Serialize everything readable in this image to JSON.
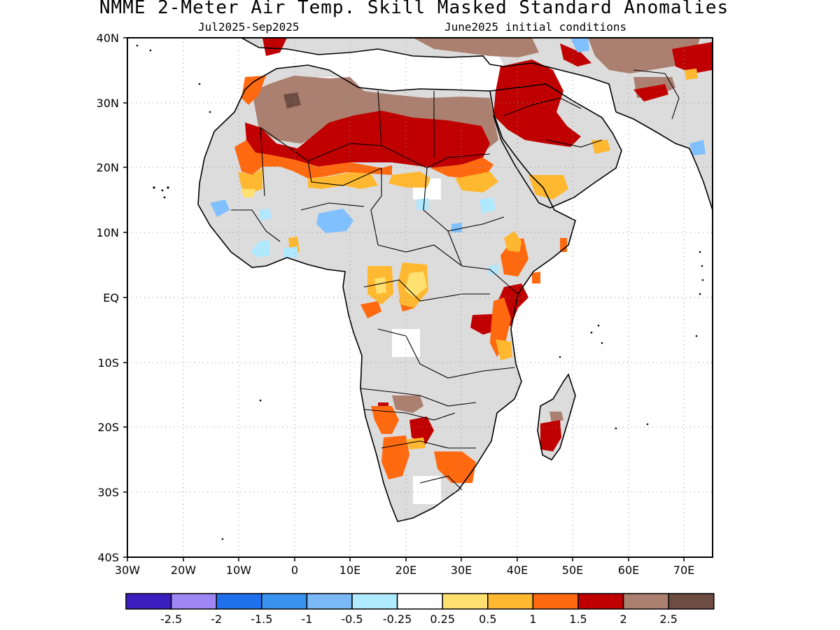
{
  "title": "NMME 2-Meter Air Temp. Skill Masked Standard Anomalies",
  "subtitle_left": "Jul2025-Sep2025",
  "subtitle_right": "June2025 initial conditions",
  "map": {
    "lon_range": [
      -30,
      75
    ],
    "lat_range": [
      -40,
      40
    ],
    "lon_ticks": [
      "30W",
      "20W",
      "10W",
      "0",
      "10E",
      "20E",
      "30E",
      "40E",
      "50E",
      "60E",
      "70E"
    ],
    "lat_ticks": [
      "40N",
      "30N",
      "20N",
      "10N",
      "EQ",
      "10S",
      "20S",
      "30S",
      "40S"
    ],
    "grid": "dotted"
  },
  "colors": {
    "land_gray": "#dcdcdc",
    "brown": "#ab8070",
    "dark_red": "#c00000",
    "orange": "#ff6a10",
    "light_orange": "#ffb830",
    "yellow": "#ffe070",
    "light_blue": "#80c0ff",
    "blue": "#4a9cf0",
    "pale_cyan": "#b0e8ff"
  },
  "colorbar": {
    "colors": [
      "#3b1ec0",
      "#9e86f5",
      "#2070ee",
      "#3a92f0",
      "#7ab8f8",
      "#b0eaff",
      "#ffffff",
      "#ffe070",
      "#ffb830",
      "#ff6a10",
      "#c00000",
      "#ab8070",
      "#6d4c42"
    ],
    "labels": [
      "-2.5",
      "-2",
      "-1.5",
      "-1",
      "-0.5",
      "-0.25",
      "0.25",
      "0.5",
      "1",
      "1.5",
      "2",
      "2.5"
    ]
  }
}
